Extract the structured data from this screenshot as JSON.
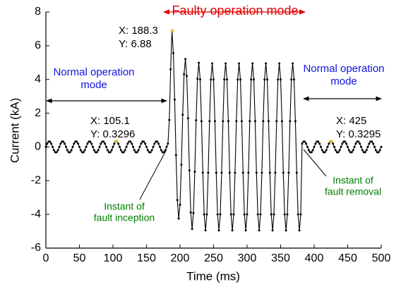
{
  "chart_data": {
    "type": "line",
    "x_label": "Time (ms)",
    "y_label": "Current (kA)",
    "xlim": [
      0,
      500
    ],
    "ylim": [
      -6,
      8
    ],
    "xticks": [
      0,
      50,
      100,
      150,
      200,
      250,
      300,
      350,
      400,
      450,
      500
    ],
    "yticks": [
      -6,
      -4,
      -2,
      0,
      2,
      4,
      6,
      8
    ],
    "color": "#000000",
    "x": [
      0,
      2,
      4,
      6,
      8,
      10,
      12,
      14,
      16,
      18,
      20,
      22,
      24,
      26,
      28,
      30,
      32,
      34,
      36,
      38,
      40,
      42,
      44,
      46,
      48,
      50,
      52,
      54,
      56,
      58,
      60,
      62,
      64,
      66,
      68,
      70,
      72,
      74,
      76,
      78,
      80,
      82,
      84,
      86,
      88,
      90,
      92,
      94,
      96,
      98,
      100,
      102,
      104,
      106,
      108,
      110,
      112,
      114,
      116,
      118,
      120,
      122,
      124,
      126,
      128,
      130,
      132,
      134,
      136,
      138,
      140,
      142,
      144,
      146,
      148,
      150,
      152,
      154,
      156,
      158,
      160,
      162,
      164,
      166,
      168,
      170,
      172,
      174,
      176,
      178,
      180,
      182,
      184,
      186,
      188,
      190,
      192,
      194,
      196,
      198,
      200,
      202,
      204,
      206,
      208,
      210,
      212,
      214,
      216,
      218,
      220,
      222,
      224,
      226,
      228,
      230,
      232,
      234,
      236,
      238,
      240,
      242,
      244,
      246,
      248,
      250,
      252,
      254,
      256,
      258,
      260,
      262,
      264,
      266,
      268,
      270,
      272,
      274,
      276,
      278,
      280,
      282,
      284,
      286,
      288,
      290,
      292,
      294,
      296,
      298,
      300,
      302,
      304,
      306,
      308,
      310,
      312,
      314,
      316,
      318,
      320,
      322,
      324,
      326,
      328,
      330,
      332,
      334,
      336,
      338,
      340,
      342,
      344,
      346,
      348,
      350,
      352,
      354,
      356,
      358,
      360,
      362,
      364,
      366,
      368,
      370,
      372,
      374,
      376,
      378,
      380,
      382,
      384,
      386,
      388,
      390,
      392,
      394,
      396,
      398,
      400,
      402,
      404,
      406,
      408,
      410,
      412,
      414,
      416,
      418,
      420,
      422,
      424,
      426,
      428,
      430,
      432,
      434,
      436,
      438,
      440,
      442,
      444,
      446,
      448,
      450,
      452,
      454,
      456,
      458,
      460,
      462,
      464,
      466,
      468,
      470,
      472,
      474,
      476,
      478,
      480,
      482,
      484,
      486,
      488,
      490,
      492,
      494,
      496,
      498,
      500
    ],
    "values": [
      0,
      0.194,
      0.314,
      0.314,
      0.194,
      0,
      -0.194,
      -0.314,
      -0.314,
      -0.194,
      0,
      0.194,
      0.314,
      0.314,
      0.194,
      0,
      -0.194,
      -0.314,
      -0.314,
      -0.194,
      0,
      0.194,
      0.314,
      0.314,
      0.194,
      0,
      -0.194,
      -0.314,
      -0.314,
      -0.194,
      0,
      0.194,
      0.314,
      0.314,
      0.194,
      0,
      -0.194,
      -0.314,
      -0.314,
      -0.194,
      0,
      0.194,
      0.314,
      0.314,
      0.194,
      0,
      -0.194,
      -0.314,
      -0.314,
      -0.194,
      0,
      0.194,
      0.314,
      0.314,
      0.194,
      0,
      -0.194,
      -0.314,
      -0.314,
      -0.194,
      0,
      0.194,
      0.314,
      0.314,
      0.194,
      0,
      -0.194,
      -0.314,
      -0.314,
      -0.194,
      0,
      0.194,
      0.314,
      0.314,
      0.194,
      0,
      -0.194,
      -0.314,
      -0.314,
      -0.194,
      0,
      0.194,
      0.314,
      0.314,
      0.194,
      0,
      -0.194,
      -0.314,
      -0.314,
      -0.194,
      0,
      0.194,
      1.6,
      4.6,
      6.88,
      5.56,
      2.8,
      -0.49,
      -3.15,
      -4.25,
      -3.43,
      -1.06,
      1.91,
      4.31,
      5.21,
      4.21,
      1.7,
      -1.39,
      -3.88,
      -4.86,
      -3.92,
      -1.47,
      1.58,
      4.04,
      4.99,
      4,
      1.53,
      -1.53,
      -4,
      -4.95,
      -4,
      -1.53,
      1.53,
      4,
      4.95,
      4,
      1.53,
      -1.53,
      -4,
      -4.95,
      -4,
      -1.53,
      1.53,
      4,
      4.95,
      4,
      1.53,
      -1.53,
      -4,
      -4.95,
      -4,
      -1.53,
      1.53,
      4,
      4.95,
      4,
      1.53,
      -1.53,
      -4,
      -4.95,
      -4,
      -1.53,
      1.53,
      4,
      4.95,
      4,
      1.53,
      -1.53,
      -4,
      -4.95,
      -4,
      -1.53,
      1.53,
      4,
      4.95,
      4,
      1.53,
      -1.53,
      -4,
      -4.95,
      -4,
      -1.53,
      1.53,
      4,
      4.95,
      4,
      1.53,
      -1.53,
      -4,
      -4.95,
      -4,
      -1.53,
      1.53,
      4,
      4.95,
      4,
      1.53,
      -1.53,
      -4,
      -4.95,
      -4,
      0.194,
      0.314,
      0.314,
      0.194,
      0,
      -0.194,
      -0.314,
      -0.314,
      -0.194,
      0,
      0.194,
      0.314,
      0.314,
      0.194,
      0,
      -0.194,
      -0.314,
      -0.314,
      -0.194,
      0,
      0.194,
      0.314,
      0.314,
      0.194,
      0,
      -0.194,
      -0.314,
      -0.314,
      -0.194,
      0,
      0.194,
      0.314,
      0.314,
      0.194,
      0,
      -0.194,
      -0.314,
      -0.314,
      -0.194,
      0,
      0.194,
      0.314,
      0.314,
      0.194,
      0,
      -0.194,
      -0.314,
      -0.314,
      -0.194,
      0,
      0.194,
      0.314,
      0.314,
      0.194,
      0,
      -0.194,
      -0.314,
      -0.314,
      -0.194,
      0
    ],
    "data_tips": [
      {
        "x": 188.3,
        "y": 6.88,
        "x_label": "X: 188.3",
        "y_label": "Y: 6.88"
      },
      {
        "x": 105.1,
        "y": 0.3296,
        "x_label": "X: 105.1",
        "y_label": "Y: 0.3296"
      },
      {
        "x": 425,
        "y": 0.3295,
        "x_label": "X: 425",
        "y_label": "Y: 0.3295"
      }
    ],
    "annotations": {
      "faulty": "Faulty operation mode",
      "normal_left": [
        "Normal operation",
        "mode"
      ],
      "normal_right": [
        "Normal operation",
        "mode"
      ],
      "inception": [
        "Instant of",
        "fault inception"
      ],
      "removal": [
        "Instant of",
        "fault removal"
      ]
    }
  }
}
